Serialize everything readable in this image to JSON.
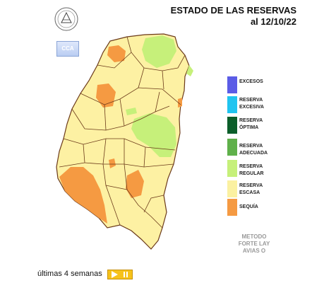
{
  "header": {
    "title_line1": "ESTADO DE LAS RESERVAS",
    "title_line2": "al 12/10/22"
  },
  "logos": {
    "seal_icon": "university-seal-icon",
    "cca_label": "CCA"
  },
  "legend": [
    {
      "label": "EXCESOS",
      "color": "#5b5ce6"
    },
    {
      "label": "RESERVA\nEXCESIVA",
      "color": "#20c4f0"
    },
    {
      "label": "RESERVA\nÓPTIMA",
      "color": "#0b5e2a"
    },
    {
      "label": "RESERVA\nADECUADA",
      "color": "#5fb04a"
    },
    {
      "label": "RESERVA\nREGULAR",
      "color": "#c6f07a"
    },
    {
      "label": "RESERVA\nESCASA",
      "color": "#fbf1a1"
    },
    {
      "label": "SEQUÍA",
      "color": "#f59a42"
    }
  ],
  "method_note": "METODO\nFORTE LAY\nAVIAS O",
  "footer": {
    "label": "últimas 4 semanas",
    "play_icon": "play-icon",
    "pause_icon": "pause-icon"
  },
  "map": {
    "region_colors": {
      "base": "#fdf1a3",
      "regular": "#c6f07a",
      "drought": "#f59a42",
      "border": "#6b3a1a"
    }
  }
}
